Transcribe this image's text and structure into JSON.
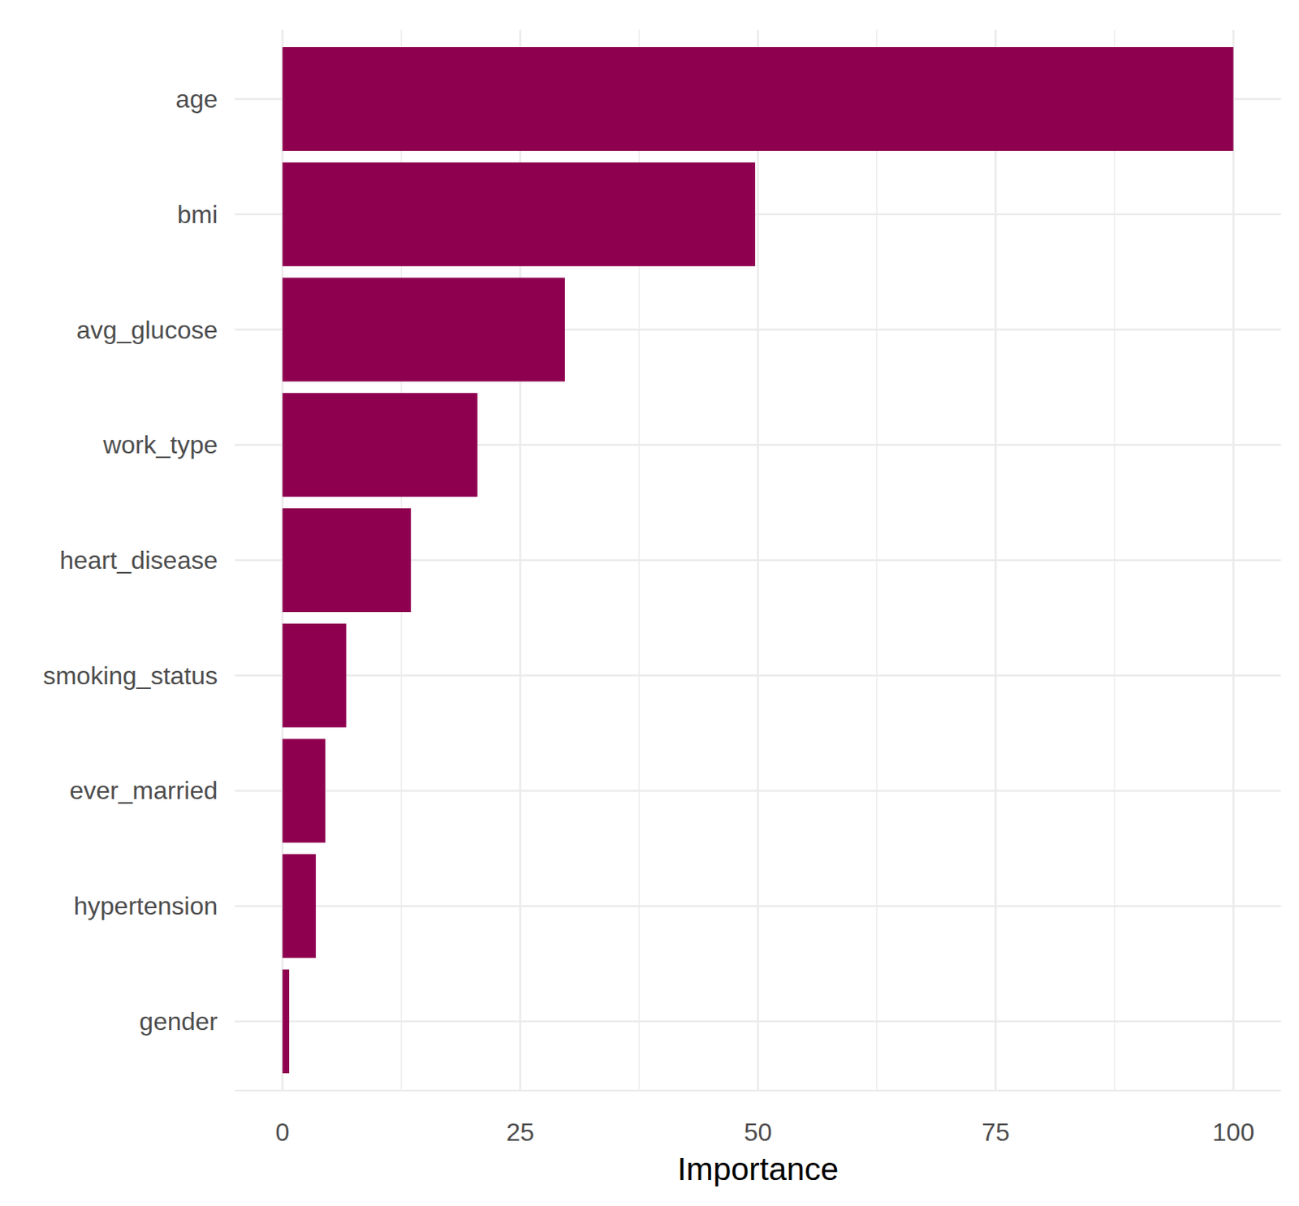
{
  "chart_data": {
    "type": "bar",
    "orientation": "horizontal",
    "x_label": "Importance",
    "categories": [
      "age",
      "bmi",
      "avg_glucose",
      "work_type",
      "heart_disease",
      "smoking_status",
      "ever_married",
      "hypertension",
      "gender"
    ],
    "values": [
      100,
      49.7,
      29.7,
      20.5,
      13.5,
      6.7,
      4.5,
      3.5,
      0.7
    ],
    "color": "#8e004f",
    "xlim": [
      -5,
      105
    ],
    "xticks": [
      0,
      25,
      50,
      75,
      100
    ],
    "grid": true
  }
}
